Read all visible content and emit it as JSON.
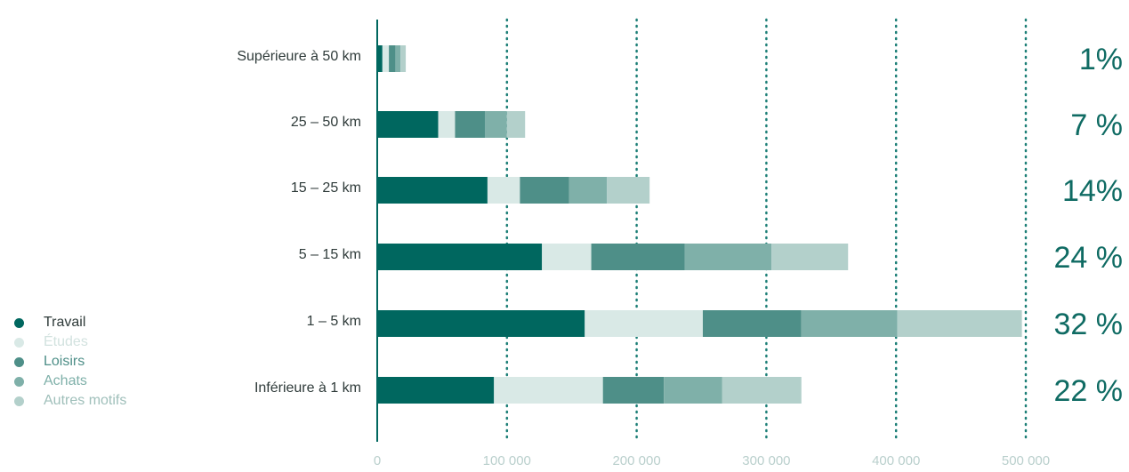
{
  "chart_data": {
    "type": "bar",
    "orientation": "horizontal",
    "stacked": true,
    "categories": [
      "Supérieure à 50 km",
      "25 – 50 km",
      "15 – 25 km",
      "5 – 15 km",
      "1 – 5 km",
      "Inférieure à 1 km"
    ],
    "series": [
      {
        "name": "Travail",
        "color": "#00675f",
        "values": [
          4000,
          47000,
          85000,
          127000,
          160000,
          90000
        ]
      },
      {
        "name": "Études",
        "color": "#d9e9e6",
        "values": [
          5000,
          13000,
          25000,
          38000,
          91000,
          84000
        ]
      },
      {
        "name": "Loisirs",
        "color": "#4e8f88",
        "values": [
          5000,
          23000,
          38000,
          72000,
          76000,
          47000
        ]
      },
      {
        "name": "Achats",
        "color": "#7fb0a9",
        "values": [
          4000,
          17000,
          29000,
          67000,
          74000,
          45000
        ]
      },
      {
        "name": "Autres motifs",
        "color": "#b3d0cb",
        "values": [
          4000,
          14000,
          33000,
          59000,
          96000,
          61000
        ]
      }
    ],
    "percentages": [
      "1%",
      "7 %",
      "14%",
      "24 %",
      "32 %",
      "22 %"
    ],
    "xlim": [
      0,
      500000
    ],
    "xticks": [
      0,
      100000,
      200000,
      300000,
      400000,
      500000
    ],
    "xtick_labels": [
      "0",
      "100 000",
      "200 000",
      "300 000",
      "400 000",
      "500 000"
    ],
    "grid": "vertical dotted",
    "legend_position": "bottom-left",
    "colors": {
      "axis": "#00675f",
      "grid": "#1d7f77",
      "tick_text": "#b9cfcc",
      "percent_text": "#0f6b63"
    }
  }
}
